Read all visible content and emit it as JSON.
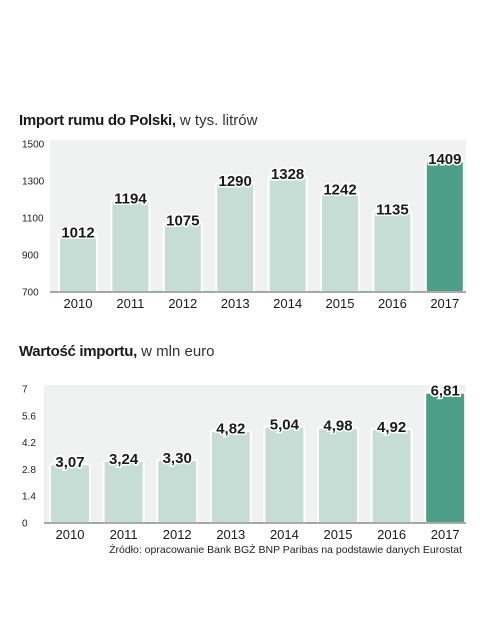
{
  "chart_data": [
    {
      "type": "bar",
      "title": "Import rumu do Polski,",
      "subtitle": "w tys. litrów",
      "categories": [
        "2010",
        "2011",
        "2012",
        "2013",
        "2014",
        "2015",
        "2016",
        "2017"
      ],
      "values": [
        1012,
        1194,
        1075,
        1290,
        1328,
        1242,
        1135,
        1409
      ],
      "value_labels": [
        "1012",
        "1194",
        "1075",
        "1290",
        "1328",
        "1242",
        "1135",
        "1409"
      ],
      "ylim": [
        700,
        1500
      ],
      "yticks": [
        "700",
        "900",
        "1100",
        "1300",
        "1500"
      ],
      "ytick_values": [
        700,
        900,
        1100,
        1300,
        1500
      ],
      "grid": false,
      "bar_color": "#c5ddd4",
      "highlight_color": "#4c9e89",
      "highlight_index": 7
    },
    {
      "type": "bar",
      "title": "Wartość importu,",
      "subtitle": "w mln euro",
      "categories": [
        "2010",
        "2011",
        "2012",
        "2013",
        "2014",
        "2015",
        "2016",
        "2017"
      ],
      "values": [
        3.07,
        3.24,
        3.3,
        4.82,
        5.04,
        4.98,
        4.92,
        6.81
      ],
      "value_labels": [
        "3,07",
        "3,24",
        "3,30",
        "4,82",
        "5,04",
        "4,98",
        "4,92",
        "6,81"
      ],
      "ylim": [
        0,
        7
      ],
      "yticks": [
        "0",
        "1.4",
        "2.8",
        "4.2",
        "5.6",
        "7"
      ],
      "ytick_values": [
        0,
        1.4,
        2.8,
        4.2,
        5.6,
        7
      ],
      "grid": false,
      "bar_color": "#c5ddd4",
      "highlight_color": "#4c9e89",
      "highlight_index": 7
    }
  ],
  "source": "Źródło: opracowanie Bank BGŻ BNP Paribas na podstawie danych Eurostat"
}
